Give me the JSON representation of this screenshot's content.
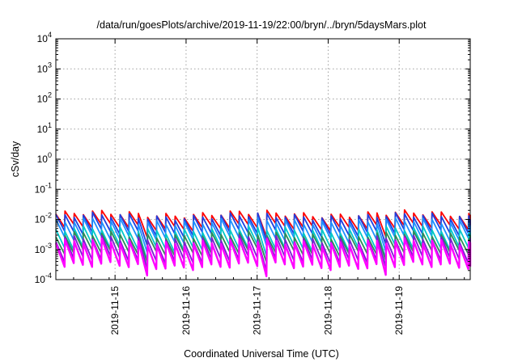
{
  "chart_data": {
    "type": "line",
    "title": "/data/run/goesPlots/archive/2019-11-19/22:00/bryn/../bryn/5daysMars.plot",
    "xlabel": "Coordinated Universal Time (UTC)",
    "ylabel": "cSv/day",
    "x_range_days": [
      "2019-11-14 04:00",
      "2019-11-20 00:00"
    ],
    "x_ticks": [
      "2019-11-15",
      "2019-11-16",
      "2019-11-17",
      "2019-11-18",
      "2019-11-19"
    ],
    "y_scale": "log",
    "ylim": [
      0.0001,
      10000
    ],
    "y_ticks": [
      {
        "base": "10",
        "exp": "4"
      },
      {
        "base": "10",
        "exp": "3"
      },
      {
        "base": "10",
        "exp": "2"
      },
      {
        "base": "10",
        "exp": "1"
      },
      {
        "base": "10",
        "exp": "0"
      },
      {
        "base": "10",
        "exp": "-1"
      },
      {
        "base": "10",
        "exp": "-2"
      },
      {
        "base": "10",
        "exp": "-3"
      },
      {
        "base": "10",
        "exp": "-4"
      }
    ],
    "grid": true,
    "sawtooth_period_hours": 3.1,
    "series": [
      {
        "color": "#ff0000",
        "peak": 0.015,
        "trough": 0.0055
      },
      {
        "color": "#1f3fdf",
        "peak": 0.0125,
        "trough": 0.0035
      },
      {
        "color": "#1e90ff",
        "peak": 0.0085,
        "trough": 0.0022
      },
      {
        "color": "#00c8c8",
        "peak": 0.0045,
        "trough": 0.0011
      },
      {
        "color": "#2e8b57",
        "peak": 0.003,
        "trough": 0.0008
      },
      {
        "color": "#7a1fd0",
        "peak": 0.0022,
        "trough": 0.00045
      },
      {
        "color": "#ff00ff",
        "peak": 0.0017,
        "trough": 0.00028
      }
    ]
  }
}
